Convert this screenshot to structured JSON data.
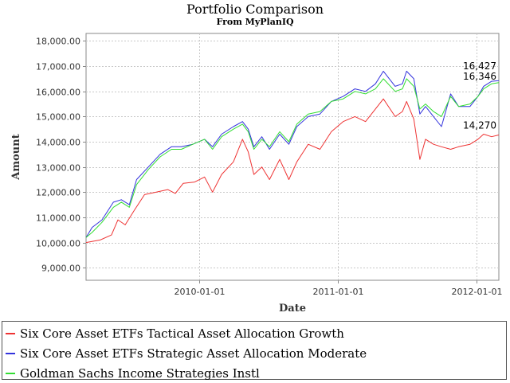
{
  "chart_data": {
    "type": "line",
    "title": "Portfolio Comparison",
    "subtitle": "From MyPlanIQ",
    "xlabel": "Date",
    "ylabel": "Amount",
    "xlim": [
      "2009-03-09",
      "2012-02-29"
    ],
    "ylim": [
      8500,
      18300
    ],
    "x_ticks": [
      "2010-01-01",
      "2011-01-01",
      "2012-01-01"
    ],
    "y_ticks": [
      9000,
      10000,
      11000,
      12000,
      13000,
      14000,
      15000,
      16000,
      17000,
      18000
    ],
    "y_tick_labels": [
      "9,000.00",
      "10,000.00",
      "11,000.00",
      "12,000.00",
      "13,000.00",
      "14,000.00",
      "15,000.00",
      "16,000.00",
      "17,000.00",
      "18,000.00"
    ],
    "grid": true,
    "legend_position": "bottom",
    "series": [
      {
        "name": "Six Core Asset ETFs Tactical Asset Allocation Growth",
        "color": "#ee3333",
        "end_label": "14,270",
        "points": [
          [
            "2009-03-09",
            10000
          ],
          [
            "2009-04-15",
            10100
          ],
          [
            "2009-05-15",
            10300
          ],
          [
            "2009-06-01",
            10900
          ],
          [
            "2009-06-20",
            10700
          ],
          [
            "2009-07-15",
            11300
          ],
          [
            "2009-08-10",
            11900
          ],
          [
            "2009-09-10",
            12000
          ],
          [
            "2009-10-10",
            12100
          ],
          [
            "2009-10-30",
            11950
          ],
          [
            "2009-11-20",
            12350
          ],
          [
            "2009-12-20",
            12400
          ],
          [
            "2010-01-15",
            12600
          ],
          [
            "2010-02-05",
            12000
          ],
          [
            "2010-03-01",
            12700
          ],
          [
            "2010-04-01",
            13200
          ],
          [
            "2010-04-25",
            14100
          ],
          [
            "2010-05-10",
            13600
          ],
          [
            "2010-05-25",
            12700
          ],
          [
            "2010-06-15",
            13000
          ],
          [
            "2010-07-05",
            12500
          ],
          [
            "2010-08-01",
            13300
          ],
          [
            "2010-08-25",
            12500
          ],
          [
            "2010-09-15",
            13200
          ],
          [
            "2010-10-15",
            13900
          ],
          [
            "2010-11-15",
            13700
          ],
          [
            "2010-12-15",
            14400
          ],
          [
            "2011-01-15",
            14800
          ],
          [
            "2011-02-15",
            15000
          ],
          [
            "2011-03-15",
            14800
          ],
          [
            "2011-04-10",
            15300
          ],
          [
            "2011-05-01",
            15700
          ],
          [
            "2011-06-01",
            15000
          ],
          [
            "2011-06-20",
            15200
          ],
          [
            "2011-07-01",
            15600
          ],
          [
            "2011-07-20",
            14900
          ],
          [
            "2011-08-05",
            13300
          ],
          [
            "2011-08-20",
            14100
          ],
          [
            "2011-09-10",
            13900
          ],
          [
            "2011-10-01",
            13800
          ],
          [
            "2011-10-25",
            13700
          ],
          [
            "2011-11-15",
            13800
          ],
          [
            "2011-12-15",
            13900
          ],
          [
            "2012-01-05",
            14100
          ],
          [
            "2012-01-20",
            14300
          ],
          [
            "2012-02-10",
            14200
          ],
          [
            "2012-02-29",
            14270
          ]
        ]
      },
      {
        "name": "Six Core Asset ETFs Strategic Asset Allocation Moderate",
        "color": "#3333dd",
        "end_label": "16,427",
        "points": [
          [
            "2009-03-09",
            10200
          ],
          [
            "2009-03-25",
            10600
          ],
          [
            "2009-04-20",
            10900
          ],
          [
            "2009-05-20",
            11600
          ],
          [
            "2009-06-10",
            11700
          ],
          [
            "2009-07-01",
            11500
          ],
          [
            "2009-07-20",
            12500
          ],
          [
            "2009-08-20",
            13000
          ],
          [
            "2009-09-20",
            13500
          ],
          [
            "2009-10-20",
            13800
          ],
          [
            "2009-11-15",
            13800
          ],
          [
            "2009-12-15",
            13900
          ],
          [
            "2010-01-15",
            14100
          ],
          [
            "2010-02-05",
            13800
          ],
          [
            "2010-03-01",
            14300
          ],
          [
            "2010-04-01",
            14600
          ],
          [
            "2010-04-25",
            14800
          ],
          [
            "2010-05-10",
            14500
          ],
          [
            "2010-05-25",
            13800
          ],
          [
            "2010-06-15",
            14200
          ],
          [
            "2010-07-05",
            13700
          ],
          [
            "2010-08-01",
            14300
          ],
          [
            "2010-08-25",
            13900
          ],
          [
            "2010-09-15",
            14600
          ],
          [
            "2010-10-15",
            15000
          ],
          [
            "2010-11-15",
            15100
          ],
          [
            "2010-12-15",
            15600
          ],
          [
            "2011-01-15",
            15800
          ],
          [
            "2011-02-15",
            16100
          ],
          [
            "2011-03-15",
            16000
          ],
          [
            "2011-04-10",
            16300
          ],
          [
            "2011-05-01",
            16800
          ],
          [
            "2011-06-01",
            16200
          ],
          [
            "2011-06-20",
            16300
          ],
          [
            "2011-07-01",
            16800
          ],
          [
            "2011-07-20",
            16500
          ],
          [
            "2011-08-05",
            15100
          ],
          [
            "2011-08-20",
            15400
          ],
          [
            "2011-09-10",
            15000
          ],
          [
            "2011-10-01",
            14600
          ],
          [
            "2011-10-25",
            15900
          ],
          [
            "2011-11-15",
            15400
          ],
          [
            "2011-12-15",
            15400
          ],
          [
            "2012-01-05",
            15800
          ],
          [
            "2012-01-20",
            16200
          ],
          [
            "2012-02-10",
            16400
          ],
          [
            "2012-02-29",
            16427
          ]
        ]
      },
      {
        "name": "Goldman Sachs Income Strategies Instl",
        "color": "#33dd33",
        "end_label": "16,346",
        "points": [
          [
            "2009-03-09",
            10200
          ],
          [
            "2009-03-25",
            10400
          ],
          [
            "2009-04-20",
            10800
          ],
          [
            "2009-05-20",
            11400
          ],
          [
            "2009-06-10",
            11600
          ],
          [
            "2009-07-01",
            11400
          ],
          [
            "2009-07-20",
            12300
          ],
          [
            "2009-08-20",
            12900
          ],
          [
            "2009-09-20",
            13400
          ],
          [
            "2009-10-20",
            13700
          ],
          [
            "2009-11-15",
            13700
          ],
          [
            "2009-12-15",
            13900
          ],
          [
            "2010-01-15",
            14100
          ],
          [
            "2010-02-05",
            13700
          ],
          [
            "2010-03-01",
            14200
          ],
          [
            "2010-04-01",
            14500
          ],
          [
            "2010-04-25",
            14700
          ],
          [
            "2010-05-10",
            14400
          ],
          [
            "2010-05-25",
            13700
          ],
          [
            "2010-06-15",
            14100
          ],
          [
            "2010-07-05",
            13800
          ],
          [
            "2010-08-01",
            14400
          ],
          [
            "2010-08-25",
            14000
          ],
          [
            "2010-09-15",
            14700
          ],
          [
            "2010-10-15",
            15100
          ],
          [
            "2010-11-15",
            15200
          ],
          [
            "2010-12-15",
            15600
          ],
          [
            "2011-01-15",
            15700
          ],
          [
            "2011-02-15",
            16000
          ],
          [
            "2011-03-15",
            15900
          ],
          [
            "2011-04-10",
            16100
          ],
          [
            "2011-05-01",
            16500
          ],
          [
            "2011-06-01",
            16000
          ],
          [
            "2011-06-20",
            16100
          ],
          [
            "2011-07-01",
            16500
          ],
          [
            "2011-07-20",
            16200
          ],
          [
            "2011-08-05",
            15300
          ],
          [
            "2011-08-20",
            15500
          ],
          [
            "2011-09-10",
            15200
          ],
          [
            "2011-10-01",
            15000
          ],
          [
            "2011-10-25",
            15800
          ],
          [
            "2011-11-15",
            15400
          ],
          [
            "2011-12-15",
            15500
          ],
          [
            "2012-01-05",
            15800
          ],
          [
            "2012-01-20",
            16100
          ],
          [
            "2012-02-10",
            16300
          ],
          [
            "2012-02-29",
            16346
          ]
        ]
      }
    ]
  }
}
